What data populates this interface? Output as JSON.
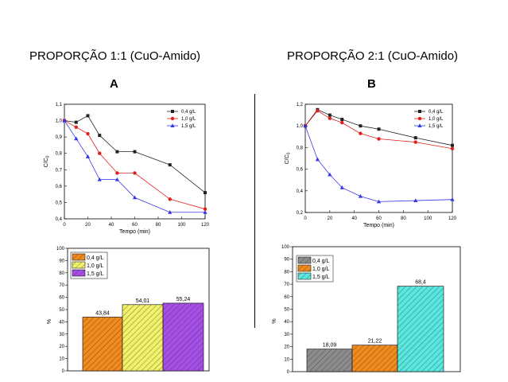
{
  "headings": {
    "left": "PROPORÇÃO 1:1 (CuO-Amido)",
    "right": "PROPORÇÃO 2:1 (CuO-Amido)",
    "left_letter": "A",
    "right_letter": "B"
  },
  "colors": {
    "black_series": "#222222",
    "red_series": "#e0201b",
    "blue_series": "#3535e8",
    "orange_bar": "#f28a1c",
    "yellow_bar": "#f2f26a",
    "purple_bar": "#a64ee8",
    "gray_bar": "#8c8c8c",
    "teal_bar": "#59e8e0"
  },
  "chart_data": [
    {
      "id": "A-line",
      "type": "line",
      "xlabel": "Tempo (min)",
      "ylabel": "C/C",
      "ylabel_sub": "0",
      "xlim": [
        0,
        120
      ],
      "ylim": [
        0.4,
        1.1
      ],
      "xticks": [
        0,
        20,
        40,
        60,
        80,
        100,
        120
      ],
      "yticks": [
        0.4,
        0.5,
        0.6,
        0.7,
        0.8,
        0.9,
        1.0,
        1.1
      ],
      "yticklabels": [
        "0,4",
        "0,5",
        "0,6",
        "0,7",
        "0,8",
        "0,9",
        "1,0",
        "1,1"
      ],
      "legend_position": "top-right",
      "series": [
        {
          "name": "0,4 g/L",
          "marker": "square",
          "x": [
            0,
            10,
            20,
            30,
            45,
            60,
            90,
            120
          ],
          "y": [
            1.0,
            0.99,
            1.03,
            0.91,
            0.81,
            0.81,
            0.73,
            0.56
          ]
        },
        {
          "name": "1,0 g/L",
          "marker": "circle",
          "x": [
            0,
            10,
            20,
            30,
            45,
            60,
            90,
            120
          ],
          "y": [
            1.0,
            0.96,
            0.92,
            0.8,
            0.68,
            0.68,
            0.52,
            0.46
          ]
        },
        {
          "name": "1,5 g/L",
          "marker": "triangle",
          "x": [
            0,
            10,
            20,
            30,
            45,
            60,
            90,
            120
          ],
          "y": [
            1.0,
            0.89,
            0.78,
            0.64,
            0.64,
            0.53,
            0.44,
            0.44
          ]
        }
      ]
    },
    {
      "id": "B-line",
      "type": "line",
      "xlabel": "Tempo (min)",
      "ylabel": "C/C",
      "ylabel_sub": "0",
      "xlim": [
        0,
        120
      ],
      "ylim": [
        0.2,
        1.2
      ],
      "xticks": [
        0,
        20,
        40,
        60,
        80,
        100,
        120
      ],
      "yticks": [
        0.2,
        0.4,
        0.6,
        0.8,
        1.0,
        1.2
      ],
      "yticklabels": [
        "0,2",
        "0,4",
        "0,6",
        "0,8",
        "1,0",
        "1,2"
      ],
      "legend_position": "top-right",
      "series": [
        {
          "name": "0,4 g/L",
          "marker": "square",
          "x": [
            0,
            10,
            20,
            30,
            45,
            60,
            90,
            120
          ],
          "y": [
            1.0,
            1.15,
            1.1,
            1.06,
            1.0,
            0.97,
            0.89,
            0.82
          ]
        },
        {
          "name": "1,0 g/L",
          "marker": "circle",
          "x": [
            0,
            10,
            20,
            30,
            45,
            60,
            90,
            120
          ],
          "y": [
            1.0,
            1.14,
            1.07,
            1.03,
            0.93,
            0.88,
            0.85,
            0.79
          ]
        },
        {
          "name": "1,5 g/L",
          "marker": "triangle",
          "x": [
            0,
            10,
            20,
            30,
            45,
            60,
            90,
            120
          ],
          "y": [
            1.0,
            0.69,
            0.55,
            0.43,
            0.35,
            0.3,
            0.31,
            0.32
          ]
        }
      ]
    },
    {
      "id": "A-bar",
      "type": "bar",
      "ylabel": "%",
      "ylim": [
        0,
        100
      ],
      "yticks": [
        0,
        10,
        20,
        30,
        40,
        50,
        60,
        70,
        80,
        90,
        100
      ],
      "legend_position": "top-left",
      "series": [
        {
          "name": "0,4 g/L",
          "value": 43.84,
          "label": "43,84",
          "color": "#f28a1c"
        },
        {
          "name": "1,0 g/L",
          "value": 54.01,
          "label": "54,01",
          "color": "#f2f26a"
        },
        {
          "name": "1,5 g/L",
          "value": 55.24,
          "label": "55,24",
          "color": "#a64ee8"
        }
      ]
    },
    {
      "id": "B-bar",
      "type": "bar",
      "ylabel": "%",
      "ylim": [
        0,
        100
      ],
      "yticks": [
        0,
        10,
        20,
        30,
        40,
        50,
        60,
        70,
        80,
        90,
        100
      ],
      "legend_position": "top-left",
      "series": [
        {
          "name": "0,4 g/L",
          "value": 18.09,
          "label": "18,09",
          "color": "#8c8c8c"
        },
        {
          "name": "1,0 g/L",
          "value": 21.22,
          "label": "21,22",
          "color": "#f28a1c"
        },
        {
          "name": "1,5 g/L",
          "value": 68.4,
          "label": "68,4",
          "color": "#59e8e0"
        }
      ]
    }
  ]
}
